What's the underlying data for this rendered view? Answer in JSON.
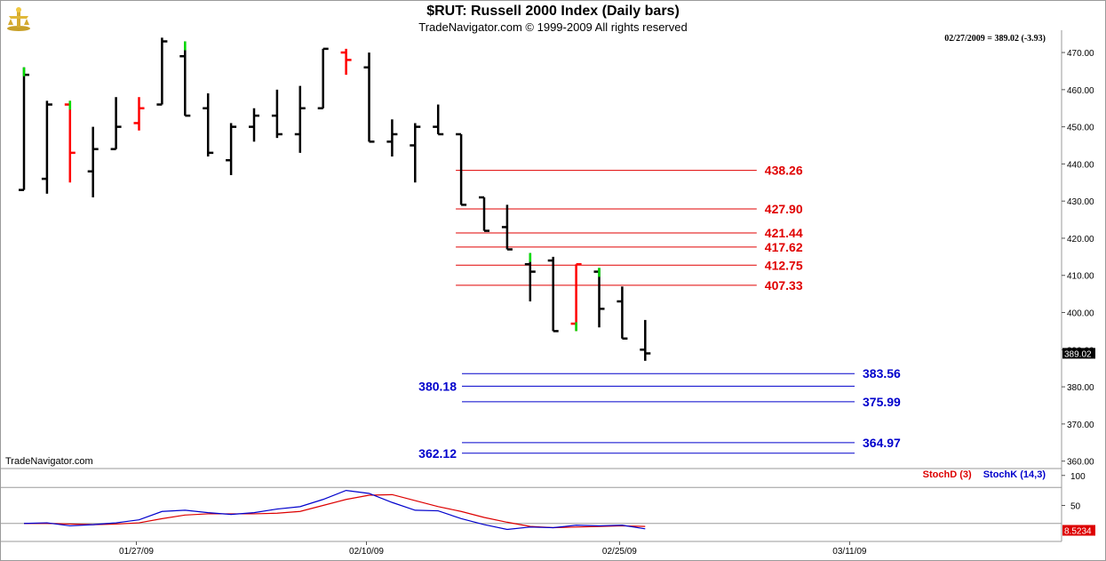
{
  "header": {
    "title": "$RUT:  Russell 2000 Index  (Daily bars)",
    "subtitle": "TradeNavigator.com © 1999-2009 All rights reserved",
    "quote": "02/27/2009 = 389.02 (-3.93)",
    "watermark": "TradeNavigator.com"
  },
  "colors": {
    "up": "#000000",
    "down": "#ff0000",
    "green": "#00dd00",
    "red_level": "#e00000",
    "blue_level": "#0000cc",
    "stochD": "#dd0000",
    "stochK": "#0000cc"
  },
  "chart_data": [
    {
      "type": "ohlc",
      "title": "$RUT:  Russell 2000 Index  (Daily bars)",
      "ylim": [
        358,
        476
      ],
      "y_ticks": [
        "470.00",
        "460.00",
        "450.00",
        "440.00",
        "430.00",
        "420.00",
        "410.00",
        "400.00",
        "390.00",
        "380.00",
        "370.00",
        "360.00"
      ],
      "last_price_label": "389.02",
      "x_tick_labels": [
        {
          "label": "01/27/09",
          "index": 5
        },
        {
          "label": "02/10/09",
          "index": 15
        },
        {
          "label": "02/25/09",
          "index": 26
        },
        {
          "label": "03/11/09",
          "index": 36
        }
      ],
      "bars": [
        {
          "o": 433,
          "h": 466,
          "l": 433,
          "c": 464,
          "color": "black",
          "top": "green"
        },
        {
          "o": 436,
          "h": 457,
          "l": 432,
          "c": 456,
          "color": "black"
        },
        {
          "o": 456,
          "h": 457,
          "l": 435,
          "c": 443,
          "color": "red",
          "top": "green"
        },
        {
          "o": 438,
          "h": 450,
          "l": 431,
          "c": 444,
          "color": "black"
        },
        {
          "o": 444,
          "h": 458,
          "l": 444,
          "c": 450,
          "color": "black"
        },
        {
          "o": 451,
          "h": 458,
          "l": 449,
          "c": 455,
          "color": "red"
        },
        {
          "o": 456,
          "h": 474,
          "l": 456,
          "c": 473,
          "color": "black"
        },
        {
          "o": 469,
          "h": 473,
          "l": 453,
          "c": 453,
          "color": "black",
          "top": "green"
        },
        {
          "o": 455,
          "h": 459,
          "l": 442,
          "c": 443,
          "color": "black"
        },
        {
          "o": 441,
          "h": 451,
          "l": 437,
          "c": 450,
          "color": "black"
        },
        {
          "o": 450,
          "h": 455,
          "l": 446,
          "c": 453,
          "color": "black"
        },
        {
          "o": 453,
          "h": 460,
          "l": 447,
          "c": 448,
          "color": "black"
        },
        {
          "o": 448,
          "h": 461,
          "l": 443,
          "c": 455,
          "color": "black"
        },
        {
          "o": 455,
          "h": 471,
          "l": 455,
          "c": 471,
          "color": "black"
        },
        {
          "o": 470,
          "h": 471,
          "l": 464,
          "c": 468,
          "color": "red"
        },
        {
          "o": 466,
          "h": 470,
          "l": 446,
          "c": 446,
          "color": "black"
        },
        {
          "o": 446,
          "h": 452,
          "l": 442,
          "c": 448,
          "color": "black"
        },
        {
          "o": 445,
          "h": 451,
          "l": 435,
          "c": 450,
          "color": "black"
        },
        {
          "o": 450,
          "h": 456,
          "l": 448,
          "c": 448,
          "color": "black"
        },
        {
          "o": 448,
          "h": 448,
          "l": 429,
          "c": 429,
          "color": "black"
        },
        {
          "o": 431,
          "h": 431,
          "l": 422,
          "c": 422,
          "color": "black"
        },
        {
          "o": 423,
          "h": 429,
          "l": 417,
          "c": 417,
          "color": "black"
        },
        {
          "o": 413,
          "h": 416,
          "l": 403,
          "c": 411,
          "color": "black",
          "top": "green"
        },
        {
          "o": 414,
          "h": 415,
          "l": 395,
          "c": 395,
          "color": "black"
        },
        {
          "o": 397,
          "h": 413,
          "l": 395,
          "c": 413,
          "color": "red",
          "bottom": "green"
        },
        {
          "o": 411,
          "h": 412,
          "l": 396,
          "c": 401,
          "color": "black",
          "top": "green"
        },
        {
          "o": 403,
          "h": 407,
          "l": 393,
          "c": 393,
          "color": "black"
        },
        {
          "o": 390,
          "h": 398,
          "l": 387,
          "c": 389,
          "color": "black"
        }
      ],
      "levels": [
        {
          "value": 438.26,
          "label": "438.26",
          "color": "red",
          "label_side": "right",
          "x_from": 19,
          "x_to": 32
        },
        {
          "value": 427.9,
          "label": "427.90",
          "color": "red",
          "label_side": "right",
          "x_from": 19,
          "x_to": 32
        },
        {
          "value": 421.44,
          "label": "421.44",
          "color": "red",
          "label_side": "right",
          "x_from": 19,
          "x_to": 32
        },
        {
          "value": 417.62,
          "label": "417.62",
          "color": "red",
          "label_side": "right",
          "x_from": 19,
          "x_to": 32
        },
        {
          "value": 412.75,
          "label": "412.75",
          "color": "red",
          "label_side": "right",
          "x_from": 19,
          "x_to": 32
        },
        {
          "value": 407.33,
          "label": "407.33",
          "color": "red",
          "label_side": "right",
          "x_from": 19,
          "x_to": 32
        },
        {
          "value": 383.56,
          "label": "383.56",
          "color": "blue",
          "label_side": "right",
          "x_from": 20,
          "x_to": 36
        },
        {
          "value": 380.18,
          "label": "380.18",
          "color": "blue",
          "label_side": "left",
          "x_from": 20,
          "x_to": 36
        },
        {
          "value": 375.99,
          "label": "375.99",
          "color": "blue",
          "label_side": "right",
          "x_from": 20,
          "x_to": 36
        },
        {
          "value": 364.97,
          "label": "364.97",
          "color": "blue",
          "label_side": "right",
          "x_from": 20,
          "x_to": 36
        },
        {
          "value": 362.12,
          "label": "362.12",
          "color": "blue",
          "label_side": "left",
          "x_from": 20,
          "x_to": 36
        }
      ]
    },
    {
      "type": "line",
      "ylim": [
        -10,
        110
      ],
      "y_ticks": [
        "100",
        "50"
      ],
      "last_value_label": "8.5234",
      "reference_lines": [
        80,
        20
      ],
      "legend": [
        {
          "name": "StochD (3)",
          "color": "red"
        },
        {
          "name": "StochK (14,3)",
          "color": "blue"
        }
      ],
      "series": [
        {
          "name": "StochD (3)",
          "color": "red",
          "values": [
            20,
            20,
            19,
            18,
            19,
            21,
            28,
            34,
            36,
            36,
            36,
            37,
            40,
            50,
            60,
            67,
            68,
            58,
            48,
            40,
            30,
            22,
            15,
            13,
            14,
            15,
            16,
            15
          ]
        },
        {
          "name": "StochK (14,3)",
          "color": "blue",
          "values": [
            20,
            21,
            16,
            18,
            21,
            26,
            40,
            42,
            38,
            35,
            38,
            44,
            48,
            60,
            75,
            70,
            55,
            42,
            41,
            28,
            18,
            10,
            14,
            13,
            17,
            16,
            17,
            11
          ]
        }
      ]
    }
  ]
}
